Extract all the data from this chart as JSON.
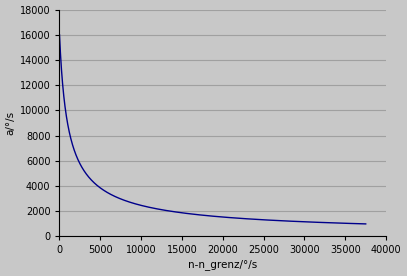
{
  "title": "",
  "xlabel": "n-n_grenz/°/s",
  "ylabel": "a/°/s",
  "xlim": [
    0,
    40000
  ],
  "ylim": [
    0,
    18000
  ],
  "xticks": [
    0,
    5000,
    10000,
    15000,
    20000,
    25000,
    30000,
    35000,
    40000
  ],
  "yticks": [
    0,
    2000,
    4000,
    6000,
    8000,
    10000,
    12000,
    14000,
    16000,
    18000
  ],
  "line_color": "#00008B",
  "background_color": "#C8C8C8",
  "figure_background": "#C8C8C8",
  "grid_color": "#A0A0A0",
  "power_A": 16000,
  "power_k": 800,
  "power_n": 0.72
}
